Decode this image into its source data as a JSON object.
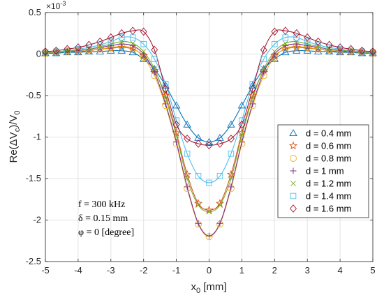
{
  "chart_data": {
    "type": "line",
    "xlabel": "x",
    "xlabel_sub": "0",
    "xlabel_unit": " [mm]",
    "ylabel_pre": "Re(ΔV",
    "ylabel_sub1": "c",
    "ylabel_mid": ")/V",
    "ylabel_sub2": "0",
    "y_multiplier_base": "×10",
    "y_multiplier_exp": "-3",
    "xlim": [
      -5,
      5
    ],
    "ylim": [
      -2.5,
      0.5
    ],
    "xticks": [
      "-5",
      "-4",
      "-3",
      "-2",
      "-1",
      "0",
      "1",
      "2",
      "3",
      "4",
      "5"
    ],
    "yticks": [
      "0.5",
      "0",
      "-0.5",
      "-1",
      "-1.5",
      "-2",
      "-2.5"
    ],
    "grid": true,
    "legend_position": "middle-right",
    "annotations": [
      "f = 300 kHz",
      "δ = 0.15 mm",
      "φ = 0 [degree]"
    ],
    "x": [
      -5.0,
      -4.67,
      -4.33,
      -4.0,
      -3.67,
      -3.33,
      -3.0,
      -2.67,
      -2.33,
      -2.0,
      -1.67,
      -1.33,
      -1.0,
      -0.67,
      -0.33,
      0.0,
      0.33,
      0.67,
      1.0,
      1.33,
      1.67,
      2.0,
      2.33,
      2.67,
      3.0,
      3.33,
      3.67,
      4.0,
      4.33,
      4.67,
      5.0
    ],
    "series": [
      {
        "name": "d = 0.4 mm",
        "color": "#0072BD",
        "marker": "triangle",
        "values": [
          0.01,
          0.01,
          0.02,
          0.02,
          0.03,
          0.03,
          0.04,
          0.04,
          0.02,
          -0.06,
          -0.18,
          -0.38,
          -0.62,
          -0.85,
          -1.01,
          -1.06,
          -1.01,
          -0.85,
          -0.62,
          -0.38,
          -0.18,
          -0.06,
          0.02,
          0.04,
          0.04,
          0.03,
          0.03,
          0.02,
          0.02,
          0.01,
          0.01
        ]
      },
      {
        "name": "d = 0.6 mm",
        "color": "#D95319",
        "marker": "star",
        "values": [
          0.01,
          0.02,
          0.03,
          0.03,
          0.04,
          0.06,
          0.07,
          0.08,
          0.06,
          -0.02,
          -0.2,
          -0.5,
          -0.95,
          -1.45,
          -1.8,
          -1.88,
          -1.8,
          -1.45,
          -0.95,
          -0.5,
          -0.2,
          -0.02,
          0.06,
          0.08,
          0.07,
          0.06,
          0.04,
          0.03,
          0.03,
          0.02,
          0.01
        ]
      },
      {
        "name": "d = 0.8 mm",
        "color": "#EDB120",
        "marker": "circle",
        "values": [
          0.01,
          0.02,
          0.03,
          0.04,
          0.05,
          0.06,
          0.08,
          0.09,
          0.07,
          -0.04,
          -0.26,
          -0.62,
          -1.08,
          -1.62,
          -2.05,
          -2.2,
          -2.05,
          -1.62,
          -1.08,
          -0.62,
          -0.26,
          -0.04,
          0.07,
          0.09,
          0.08,
          0.06,
          0.05,
          0.04,
          0.03,
          0.02,
          0.01
        ]
      },
      {
        "name": "d = 1 mm",
        "color": "#7E2F8E",
        "marker": "plus",
        "values": [
          0.01,
          0.02,
          0.03,
          0.04,
          0.06,
          0.08,
          0.1,
          0.12,
          0.1,
          0.0,
          -0.22,
          -0.6,
          -1.06,
          -1.6,
          -2.04,
          -2.19,
          -2.04,
          -1.6,
          -1.06,
          -0.6,
          -0.22,
          0.0,
          0.1,
          0.12,
          0.1,
          0.08,
          0.06,
          0.04,
          0.03,
          0.02,
          0.01
        ]
      },
      {
        "name": "d = 1.2 mm",
        "color": "#77AC30",
        "marker": "x",
        "values": [
          0.01,
          0.02,
          0.03,
          0.05,
          0.06,
          0.09,
          0.12,
          0.15,
          0.13,
          0.03,
          -0.18,
          -0.53,
          -0.98,
          -1.5,
          -1.82,
          -1.9,
          -1.82,
          -1.5,
          -0.98,
          -0.53,
          -0.18,
          0.03,
          0.13,
          0.15,
          0.12,
          0.09,
          0.06,
          0.05,
          0.03,
          0.02,
          0.01
        ]
      },
      {
        "name": "d = 1.4 mm",
        "color": "#4DBEEE",
        "marker": "square",
        "values": [
          0.02,
          0.03,
          0.04,
          0.06,
          0.08,
          0.11,
          0.15,
          0.2,
          0.2,
          0.12,
          -0.06,
          -0.36,
          -0.8,
          -1.2,
          -1.47,
          -1.55,
          -1.47,
          -1.2,
          -0.8,
          -0.36,
          -0.06,
          0.12,
          0.2,
          0.2,
          0.15,
          0.11,
          0.08,
          0.06,
          0.04,
          0.03,
          0.02
        ]
      },
      {
        "name": "d = 1.6 mm",
        "color": "#A2142F",
        "marker": "diamond",
        "values": [
          0.03,
          0.04,
          0.06,
          0.08,
          0.11,
          0.15,
          0.2,
          0.25,
          0.28,
          0.27,
          0.05,
          -0.42,
          -0.85,
          -1.02,
          -1.08,
          -1.1,
          -1.08,
          -1.02,
          -0.85,
          -0.42,
          0.05,
          0.27,
          0.28,
          0.25,
          0.2,
          0.15,
          0.11,
          0.08,
          0.06,
          0.04,
          0.03
        ]
      }
    ]
  }
}
